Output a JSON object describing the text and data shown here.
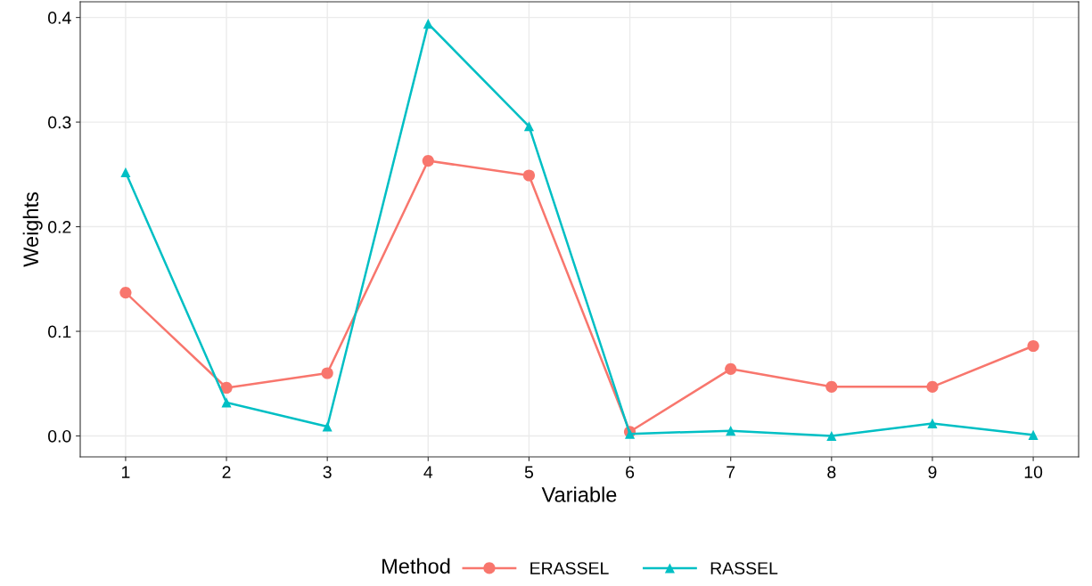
{
  "chart_data": {
    "type": "line",
    "xlabel": "Variable",
    "ylabel": "Weights",
    "legend_title": "Method",
    "x": [
      1,
      2,
      3,
      4,
      5,
      6,
      7,
      8,
      9,
      10
    ],
    "series": [
      {
        "name": "ERASSEL",
        "color": "#f8766d",
        "marker": "circle",
        "values": [
          0.137,
          0.046,
          0.06,
          0.263,
          0.249,
          0.004,
          0.064,
          0.047,
          0.047,
          0.086
        ]
      },
      {
        "name": "RASSEL",
        "color": "#00bfc4",
        "marker": "triangle",
        "values": [
          0.252,
          0.032,
          0.009,
          0.394,
          0.296,
          0.002,
          0.005,
          0.0,
          0.012,
          0.001
        ]
      }
    ],
    "xlim": [
      0.55,
      10.45
    ],
    "xticks": [
      1,
      2,
      3,
      4,
      5,
      6,
      7,
      8,
      9,
      10
    ],
    "ylim": [
      -0.02,
      0.415
    ],
    "yticks": [
      {
        "value": 0,
        "label": "0.0"
      },
      0.1,
      0.2,
      0.3,
      0.4
    ],
    "grid": true,
    "legend": "bottom",
    "line_style": "solid"
  }
}
